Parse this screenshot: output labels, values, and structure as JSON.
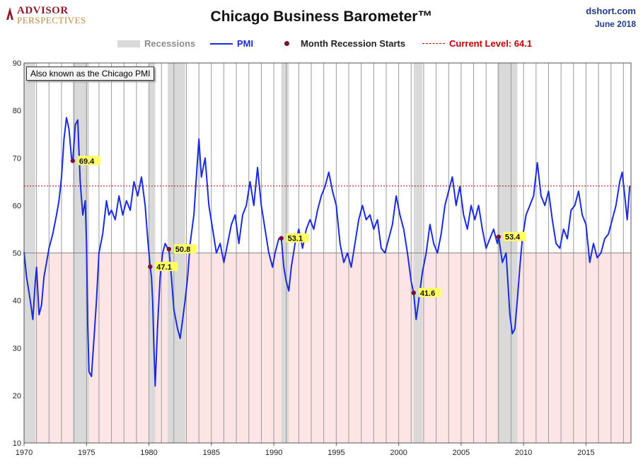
{
  "brand": {
    "line1": "ADVISOR",
    "line2": "PERSPECTIVES"
  },
  "source": {
    "site": "dshort.com",
    "date": "June 2018"
  },
  "note": "Also known as the Chicago PMI",
  "colors": {
    "pmi": "#1a2be0",
    "recession_band": "#d9d9d9",
    "marker": "#7a1030",
    "current_line": "#c00000",
    "contraction_zone": "#fde5e5",
    "label_bg": "#ffff66"
  },
  "chart_data": {
    "type": "line",
    "title": "Chicago Business Barometer™",
    "legend": [
      "Recessions",
      "PMI",
      "Month Recession Starts",
      "Current Level: 64.1"
    ],
    "legend_placement": "top",
    "xlim": [
      1970,
      2018.6
    ],
    "ylim": [
      10,
      90
    ],
    "yticks": [
      10,
      20,
      30,
      40,
      50,
      60,
      70,
      80,
      90
    ],
    "xticks": [
      "1970",
      "1975",
      "1980",
      "1985",
      "1990",
      "1995",
      "2000",
      "2005",
      "2010",
      "2015"
    ],
    "grid": "vertical lines each year",
    "contraction_threshold": 50,
    "current_level": 64.1,
    "recessions": [
      [
        1970.0,
        1970.9
      ],
      [
        1973.9,
        1975.2
      ],
      [
        1980.0,
        1980.5
      ],
      [
        1981.5,
        1982.9
      ],
      [
        1990.6,
        1991.2
      ],
      [
        2001.2,
        2001.9
      ],
      [
        2007.9,
        2009.5
      ]
    ],
    "recession_starts": [
      {
        "x": 1973.9,
        "y": 69.4,
        "label": "69.4"
      },
      {
        "x": 1980.1,
        "y": 47.1,
        "label": "47.1"
      },
      {
        "x": 1981.6,
        "y": 50.8,
        "label": "50.8"
      },
      {
        "x": 1990.6,
        "y": 53.1,
        "label": "53.1"
      },
      {
        "x": 2001.2,
        "y": 41.6,
        "label": "41.6"
      },
      {
        "x": 2008.0,
        "y": 53.4,
        "label": "53.4"
      }
    ],
    "series": [
      {
        "name": "PMI",
        "points": [
          [
            1970.0,
            50.2
          ],
          [
            1970.2,
            45
          ],
          [
            1970.5,
            40
          ],
          [
            1970.7,
            36
          ],
          [
            1970.9,
            44
          ],
          [
            1971.0,
            47
          ],
          [
            1971.2,
            37
          ],
          [
            1971.4,
            39
          ],
          [
            1971.6,
            45
          ],
          [
            1971.8,
            48
          ],
          [
            1972.0,
            51
          ],
          [
            1972.3,
            54
          ],
          [
            1972.6,
            58
          ],
          [
            1972.8,
            61
          ],
          [
            1973.0,
            66
          ],
          [
            1973.2,
            74
          ],
          [
            1973.4,
            78.5
          ],
          [
            1973.6,
            76
          ],
          [
            1973.8,
            70
          ],
          [
            1973.9,
            69.4
          ],
          [
            1974.1,
            77
          ],
          [
            1974.3,
            78
          ],
          [
            1974.5,
            65
          ],
          [
            1974.7,
            58
          ],
          [
            1974.9,
            61
          ],
          [
            1975.0,
            52
          ],
          [
            1975.1,
            35
          ],
          [
            1975.2,
            25
          ],
          [
            1975.4,
            24
          ],
          [
            1975.6,
            32
          ],
          [
            1975.8,
            40
          ],
          [
            1976.0,
            50
          ],
          [
            1976.3,
            54
          ],
          [
            1976.6,
            61
          ],
          [
            1976.8,
            58
          ],
          [
            1977.0,
            59
          ],
          [
            1977.3,
            57
          ],
          [
            1977.6,
            62
          ],
          [
            1977.9,
            58
          ],
          [
            1978.2,
            61
          ],
          [
            1978.5,
            59
          ],
          [
            1978.8,
            65
          ],
          [
            1979.1,
            62
          ],
          [
            1979.4,
            66
          ],
          [
            1979.7,
            60
          ],
          [
            1979.9,
            53
          ],
          [
            1980.1,
            47.1
          ],
          [
            1980.2,
            45
          ],
          [
            1980.3,
            40
          ],
          [
            1980.4,
            30
          ],
          [
            1980.5,
            22
          ],
          [
            1980.7,
            35
          ],
          [
            1980.9,
            45
          ],
          [
            1981.1,
            50
          ],
          [
            1981.3,
            52
          ],
          [
            1981.5,
            51
          ],
          [
            1981.6,
            50.8
          ],
          [
            1981.8,
            45
          ],
          [
            1982.0,
            38
          ],
          [
            1982.3,
            34
          ],
          [
            1982.5,
            32
          ],
          [
            1982.7,
            36
          ],
          [
            1982.9,
            40
          ],
          [
            1983.1,
            45
          ],
          [
            1983.3,
            52
          ],
          [
            1983.6,
            58
          ],
          [
            1983.8,
            66
          ],
          [
            1984.0,
            74
          ],
          [
            1984.2,
            66
          ],
          [
            1984.5,
            70
          ],
          [
            1984.8,
            60
          ],
          [
            1985.1,
            55
          ],
          [
            1985.4,
            50
          ],
          [
            1985.7,
            52
          ],
          [
            1986.0,
            48
          ],
          [
            1986.3,
            52
          ],
          [
            1986.6,
            56
          ],
          [
            1986.9,
            58
          ],
          [
            1987.2,
            52
          ],
          [
            1987.5,
            58
          ],
          [
            1987.8,
            60
          ],
          [
            1988.1,
            65
          ],
          [
            1988.4,
            60
          ],
          [
            1988.7,
            68
          ],
          [
            1989.0,
            60
          ],
          [
            1989.3,
            55
          ],
          [
            1989.6,
            50
          ],
          [
            1989.9,
            47
          ],
          [
            1990.1,
            50
          ],
          [
            1990.4,
            53
          ],
          [
            1990.6,
            53.1
          ],
          [
            1990.8,
            47
          ],
          [
            1991.0,
            44
          ],
          [
            1991.2,
            42
          ],
          [
            1991.4,
            47
          ],
          [
            1991.7,
            52
          ],
          [
            1992.0,
            55
          ],
          [
            1992.3,
            51
          ],
          [
            1992.6,
            55
          ],
          [
            1992.9,
            57
          ],
          [
            1993.2,
            55
          ],
          [
            1993.5,
            59
          ],
          [
            1993.8,
            62
          ],
          [
            1994.1,
            64
          ],
          [
            1994.4,
            67
          ],
          [
            1994.7,
            63
          ],
          [
            1995.0,
            60
          ],
          [
            1995.3,
            52
          ],
          [
            1995.6,
            48
          ],
          [
            1995.9,
            50
          ],
          [
            1996.2,
            47
          ],
          [
            1996.5,
            52
          ],
          [
            1996.8,
            57
          ],
          [
            1997.1,
            60
          ],
          [
            1997.4,
            57
          ],
          [
            1997.7,
            58
          ],
          [
            1998.0,
            55
          ],
          [
            1998.3,
            57
          ],
          [
            1998.6,
            51
          ],
          [
            1998.9,
            50
          ],
          [
            1999.2,
            53
          ],
          [
            1999.5,
            56
          ],
          [
            1999.8,
            62
          ],
          [
            2000.1,
            58
          ],
          [
            2000.4,
            55
          ],
          [
            2000.7,
            50
          ],
          [
            2001.0,
            44
          ],
          [
            2001.2,
            41.6
          ],
          [
            2001.4,
            36
          ],
          [
            2001.6,
            40
          ],
          [
            2001.9,
            46
          ],
          [
            2002.2,
            50
          ],
          [
            2002.5,
            56
          ],
          [
            2002.8,
            52
          ],
          [
            2003.1,
            50
          ],
          [
            2003.4,
            54
          ],
          [
            2003.7,
            60
          ],
          [
            2004.0,
            63
          ],
          [
            2004.3,
            66
          ],
          [
            2004.6,
            60
          ],
          [
            2004.9,
            64
          ],
          [
            2005.2,
            58
          ],
          [
            2005.5,
            55
          ],
          [
            2005.8,
            60
          ],
          [
            2006.1,
            57
          ],
          [
            2006.4,
            60
          ],
          [
            2006.7,
            55
          ],
          [
            2007.0,
            51
          ],
          [
            2007.3,
            53
          ],
          [
            2007.6,
            55
          ],
          [
            2007.9,
            52
          ],
          [
            2008.0,
            53.4
          ],
          [
            2008.3,
            48
          ],
          [
            2008.6,
            50
          ],
          [
            2008.9,
            37
          ],
          [
            2009.1,
            33
          ],
          [
            2009.3,
            34
          ],
          [
            2009.5,
            40
          ],
          [
            2009.7,
            47
          ],
          [
            2009.9,
            53
          ],
          [
            2010.2,
            58
          ],
          [
            2010.5,
            60
          ],
          [
            2010.8,
            62
          ],
          [
            2011.1,
            69
          ],
          [
            2011.4,
            62
          ],
          [
            2011.7,
            60
          ],
          [
            2012.0,
            63
          ],
          [
            2012.3,
            57
          ],
          [
            2012.6,
            52
          ],
          [
            2012.9,
            51
          ],
          [
            2013.2,
            55
          ],
          [
            2013.5,
            53
          ],
          [
            2013.8,
            59
          ],
          [
            2014.1,
            60
          ],
          [
            2014.4,
            63
          ],
          [
            2014.7,
            58
          ],
          [
            2015.0,
            56
          ],
          [
            2015.3,
            48
          ],
          [
            2015.6,
            52
          ],
          [
            2015.9,
            49
          ],
          [
            2016.2,
            50
          ],
          [
            2016.5,
            53
          ],
          [
            2016.8,
            54
          ],
          [
            2017.1,
            57
          ],
          [
            2017.4,
            60
          ],
          [
            2017.7,
            65
          ],
          [
            2017.9,
            67
          ],
          [
            2018.1,
            62
          ],
          [
            2018.3,
            57
          ],
          [
            2018.5,
            64.1
          ]
        ]
      }
    ]
  }
}
